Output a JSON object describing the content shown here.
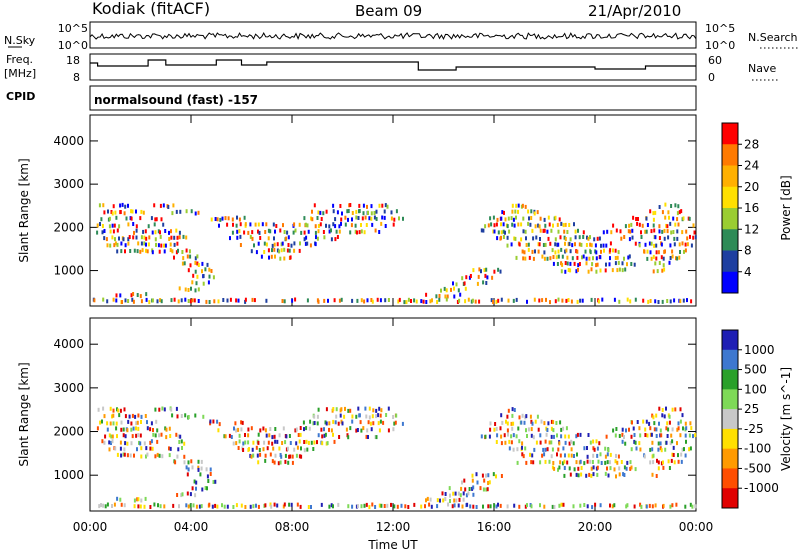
{
  "header": {
    "station": "Kodiak (fitACF)",
    "beam": "Beam 09",
    "date": "21/Apr/2010"
  },
  "summary": {
    "nsky_label": "N.Sky",
    "nsearch_label": "N.Search",
    "freq_label_1": "Freq.",
    "freq_label_2": "[MHz]",
    "nave_label": "Nave",
    "cpid_label": "CPID",
    "noise_ticks": [
      "10^5",
      "10^0"
    ],
    "noise_ticks_right": [
      "10^5",
      "10^0"
    ],
    "freq_ticks": [
      "18",
      "8"
    ],
    "nave_ticks": [
      "60",
      "0"
    ],
    "cpid_text": "normalsound (fast) -157"
  },
  "chart_data": [
    {
      "type": "heatmap",
      "name": "power",
      "ylabel": "Slant Range [km]",
      "xlabel": "",
      "yticks": [
        1000,
        2000,
        3000,
        4000
      ],
      "ylim": [
        180,
        4600
      ],
      "xlim": [
        0,
        24
      ],
      "colorbar_label": "Power [dB]",
      "colorbar_ticks": [
        "28",
        "24",
        "20",
        "16",
        "12",
        "8",
        "4"
      ],
      "colorbar_colors": [
        "#ff0000",
        "#ff7a00",
        "#ffb000",
        "#ffe000",
        "#9acd32",
        "#2e8b57",
        "#1e3fa0",
        "#0000ff"
      ],
      "bands": [
        {
          "r": 2500,
          "segs": [
            [
              0.3,
              1.5
            ],
            [
              2.5,
              3.5
            ],
            [
              8.8,
              11.8
            ],
            [
              16.5,
              17.3
            ],
            [
              22.5,
              23.4
            ]
          ]
        },
        {
          "r": 2350,
          "segs": [
            [
              0.5,
              2.2
            ],
            [
              3.2,
              4.5
            ],
            [
              8.6,
              12.2
            ],
            [
              16.2,
              17.8
            ],
            [
              22.0,
              23.6
            ]
          ]
        },
        {
          "r": 2200,
          "segs": [
            [
              0.3,
              2.8
            ],
            [
              4.5,
              6.2
            ],
            [
              8.4,
              12.4
            ],
            [
              15.8,
              18.6
            ],
            [
              21.2,
              23.8
            ]
          ]
        },
        {
          "r": 2050,
          "segs": [
            [
              0.2,
              3.2
            ],
            [
              5.0,
              8.6
            ],
            [
              8.3,
              12.0
            ],
            [
              15.6,
              19.2
            ],
            [
              20.6,
              24.0
            ]
          ]
        },
        {
          "r": 1900,
          "segs": [
            [
              0.2,
              3.6
            ],
            [
              5.2,
              9.5
            ],
            [
              9.5,
              11.5
            ],
            [
              15.4,
              19.8
            ],
            [
              20.2,
              24.0
            ]
          ]
        },
        {
          "r": 1750,
          "segs": [
            [
              0.4,
              3.8
            ],
            [
              5.5,
              9.8
            ],
            [
              16.0,
              20.2
            ],
            [
              21.0,
              24.0
            ]
          ]
        },
        {
          "r": 1600,
          "segs": [
            [
              0.6,
              3.8
            ],
            [
              5.8,
              9.0
            ],
            [
              16.4,
              20.6
            ],
            [
              21.4,
              23.8
            ]
          ]
        },
        {
          "r": 1450,
          "segs": [
            [
              1.0,
              4.0
            ],
            [
              6.2,
              8.4
            ],
            [
              17.0,
              21.0
            ],
            [
              21.8,
              23.6
            ]
          ]
        },
        {
          "r": 1300,
          "segs": [
            [
              3.2,
              4.4
            ],
            [
              6.6,
              8.0
            ],
            [
              16.8,
              21.4
            ],
            [
              22.0,
              23.4
            ]
          ]
        },
        {
          "r": 1150,
          "segs": [
            [
              3.6,
              4.8
            ],
            [
              18.2,
              21.6
            ],
            [
              22.2,
              23.0
            ]
          ]
        },
        {
          "r": 1000,
          "segs": [
            [
              3.8,
              4.8
            ],
            [
              15.0,
              16.4
            ],
            [
              18.6,
              21.2
            ],
            [
              22.2,
              22.8
            ]
          ]
        },
        {
          "r": 850,
          "segs": [
            [
              4.0,
              5.0
            ],
            [
              14.6,
              16.0
            ]
          ]
        },
        {
          "r": 700,
          "segs": [
            [
              4.0,
              4.8
            ],
            [
              14.2,
              15.8
            ]
          ]
        },
        {
          "r": 560,
          "segs": [
            [
              3.4,
              4.4
            ],
            [
              13.8,
              15.4
            ]
          ]
        },
        {
          "r": 430,
          "segs": [
            [
              1.0,
              2.2
            ],
            [
              13.2,
              14.8
            ]
          ]
        },
        {
          "r": 300,
          "segs": [
            [
              0.0,
              24.0
            ]
          ]
        }
      ]
    },
    {
      "type": "heatmap",
      "name": "velocity",
      "ylabel": "Slant Range [km]",
      "xlabel": "Time UT",
      "yticks": [
        1000,
        2000,
        3000,
        4000
      ],
      "ylim": [
        180,
        4600
      ],
      "xlim": [
        0,
        24
      ],
      "xticks": [
        "00:00",
        "04:00",
        "08:00",
        "12:00",
        "16:00",
        "20:00",
        "00:00"
      ],
      "colorbar_label": "Velocity [m s^-1]",
      "colorbar_ticks": [
        "1000",
        "500",
        "100",
        "25",
        "-25",
        "-100",
        "-500",
        "-1000"
      ],
      "colorbar_colors": [
        "#1f1fb4",
        "#3e78d0",
        "#2aa02a",
        "#7ed957",
        "#c8c8c8",
        "#ffe000",
        "#ff9a00",
        "#ff4e00",
        "#e00000"
      ],
      "bands": [
        {
          "r": 2500,
          "segs": [
            [
              0.3,
              1.5
            ],
            [
              2.5,
              3.5
            ],
            [
              8.8,
              11.8
            ],
            [
              16.5,
              17.3
            ],
            [
              22.5,
              23.4
            ]
          ]
        },
        {
          "r": 2350,
          "segs": [
            [
              0.5,
              2.2
            ],
            [
              3.2,
              4.5
            ],
            [
              8.6,
              12.2
            ],
            [
              16.2,
              17.8
            ],
            [
              22.0,
              23.6
            ]
          ]
        },
        {
          "r": 2200,
          "segs": [
            [
              0.3,
              2.8
            ],
            [
              4.5,
              6.2
            ],
            [
              8.4,
              12.4
            ],
            [
              15.8,
              18.6
            ],
            [
              21.2,
              23.8
            ]
          ]
        },
        {
          "r": 2050,
          "segs": [
            [
              0.2,
              3.2
            ],
            [
              5.0,
              8.6
            ],
            [
              8.3,
              12.0
            ],
            [
              15.6,
              19.2
            ],
            [
              20.6,
              24.0
            ]
          ]
        },
        {
          "r": 1900,
          "segs": [
            [
              0.2,
              3.6
            ],
            [
              5.2,
              9.5
            ],
            [
              9.5,
              11.5
            ],
            [
              15.4,
              19.8
            ],
            [
              20.2,
              24.0
            ]
          ]
        },
        {
          "r": 1750,
          "segs": [
            [
              0.4,
              3.8
            ],
            [
              5.5,
              9.8
            ],
            [
              16.0,
              20.2
            ],
            [
              21.0,
              24.0
            ]
          ]
        },
        {
          "r": 1600,
          "segs": [
            [
              0.6,
              3.8
            ],
            [
              5.8,
              9.0
            ],
            [
              16.4,
              20.6
            ],
            [
              21.4,
              23.8
            ]
          ]
        },
        {
          "r": 1450,
          "segs": [
            [
              1.0,
              4.0
            ],
            [
              6.2,
              8.4
            ],
            [
              17.0,
              21.0
            ],
            [
              21.8,
              23.6
            ]
          ]
        },
        {
          "r": 1300,
          "segs": [
            [
              3.2,
              4.4
            ],
            [
              6.6,
              8.0
            ],
            [
              16.8,
              21.4
            ],
            [
              22.0,
              23.4
            ]
          ]
        },
        {
          "r": 1150,
          "segs": [
            [
              3.6,
              4.8
            ],
            [
              18.2,
              21.6
            ],
            [
              22.2,
              23.0
            ]
          ]
        },
        {
          "r": 1000,
          "segs": [
            [
              3.8,
              4.8
            ],
            [
              15.0,
              16.4
            ],
            [
              18.6,
              21.2
            ],
            [
              22.2,
              22.8
            ]
          ]
        },
        {
          "r": 850,
          "segs": [
            [
              4.0,
              5.0
            ],
            [
              14.6,
              16.0
            ]
          ]
        },
        {
          "r": 700,
          "segs": [
            [
              4.0,
              4.8
            ],
            [
              14.2,
              15.8
            ]
          ]
        },
        {
          "r": 560,
          "segs": [
            [
              3.4,
              4.4
            ],
            [
              13.8,
              15.4
            ]
          ]
        },
        {
          "r": 430,
          "segs": [
            [
              1.0,
              2.2
            ],
            [
              13.2,
              14.8
            ]
          ]
        },
        {
          "r": 300,
          "segs": [
            [
              0.0,
              24.0
            ]
          ]
        }
      ]
    }
  ]
}
